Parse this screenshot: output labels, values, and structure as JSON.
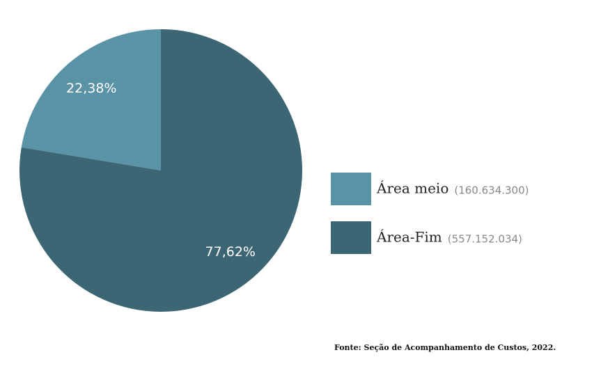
{
  "chart_data": {
    "type": "pie",
    "categories": [
      "Área meio",
      "Área-Fim"
    ],
    "values": [
      22.38,
      77.62
    ],
    "value_labels": [
      "22,38%",
      "77,62%"
    ],
    "legend_details": [
      "(160.634.300)",
      "(557.152.034)"
    ],
    "colors": [
      "#5b93a6",
      "#3d6674"
    ],
    "source": "Fonte: Seção de Acompanhamento de Custos, 2022."
  }
}
